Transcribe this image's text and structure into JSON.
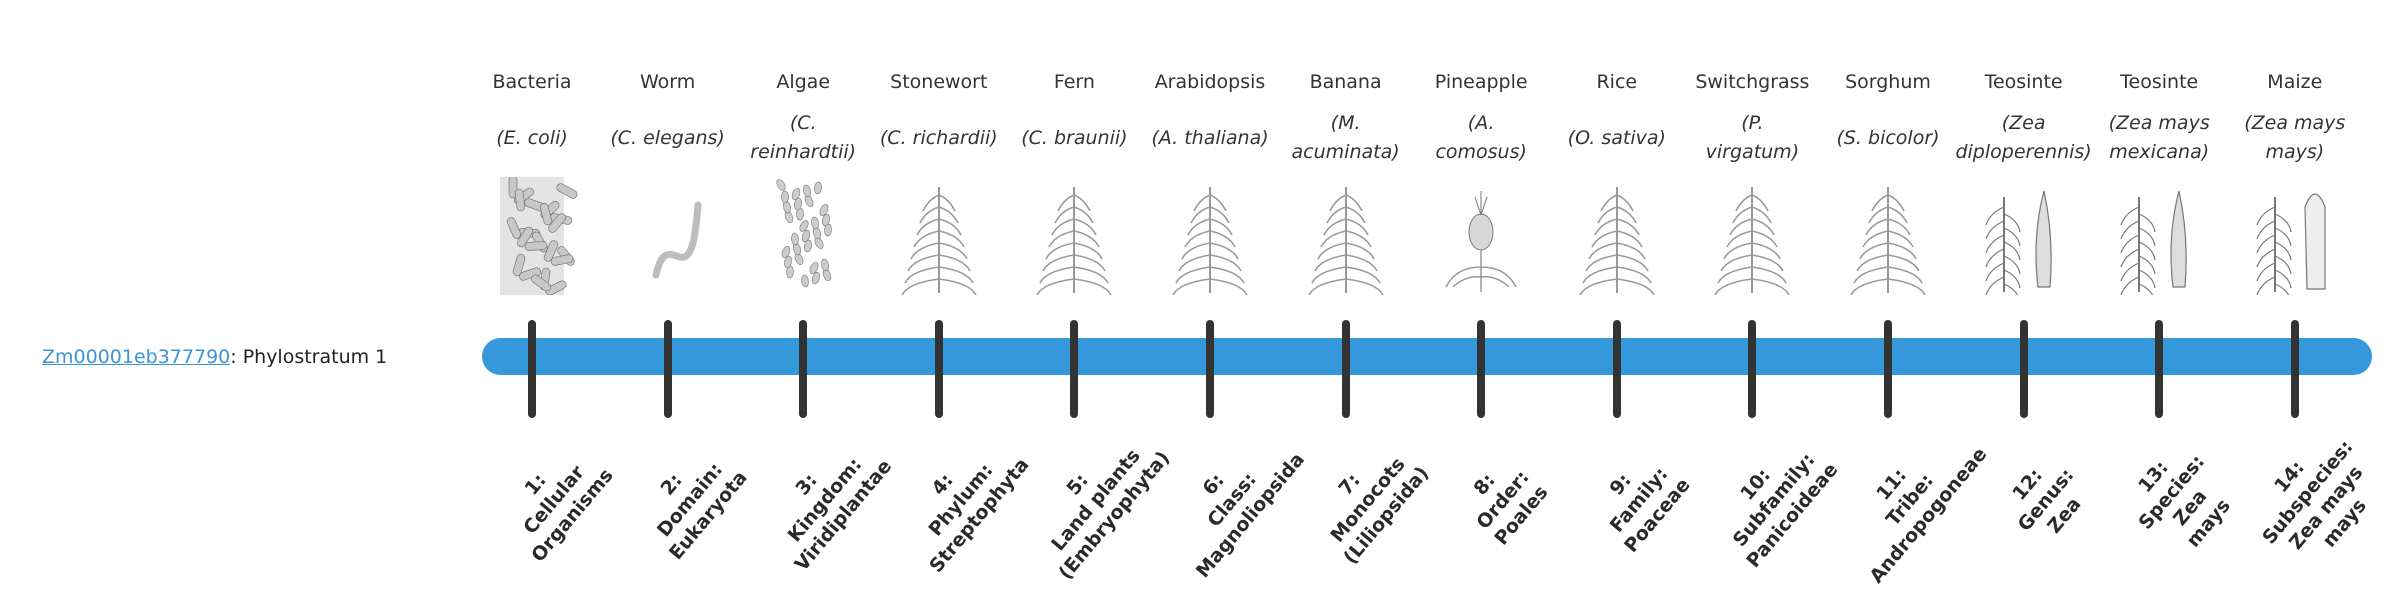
{
  "gene": {
    "id": "Zm00001eb377790",
    "suffix": ": Phylostratum 1"
  },
  "colors": {
    "bar": "#3498db",
    "tick": "#333333",
    "link": "#3a95d8"
  },
  "strata": [
    {
      "name": "Bacteria",
      "species": [
        "(E. coli)"
      ],
      "icon": "bacteria-icon",
      "label": [
        "1:",
        "Cellular",
        "Organisms"
      ]
    },
    {
      "name": "Worm",
      "species": [
        "(C. elegans)"
      ],
      "icon": "worm-icon",
      "label": [
        "2:",
        "Domain:",
        "Eukaryota"
      ]
    },
    {
      "name": "Algae",
      "species": [
        "(C.",
        "reinhardtii)"
      ],
      "icon": "algae-icon",
      "label": [
        "3:",
        "Kingdom:",
        "Viridiplantae"
      ]
    },
    {
      "name": "Stonewort",
      "species": [
        "(C. richardii)"
      ],
      "icon": "stonewort-icon",
      "label": [
        "4:",
        "Phylum:",
        "Streptophyta"
      ]
    },
    {
      "name": "Fern",
      "species": [
        "(C. braunii)"
      ],
      "icon": "fern-icon",
      "label": [
        "5:",
        "Land plants",
        "(Embryophyta)"
      ]
    },
    {
      "name": "Arabidopsis",
      "species": [
        "(A. thaliana)"
      ],
      "icon": "arabidopsis-icon",
      "label": [
        "6:",
        "Class:",
        "Magnoliopsida"
      ]
    },
    {
      "name": "Banana",
      "species": [
        "(M.",
        "acuminata)"
      ],
      "icon": "banana-icon",
      "label": [
        "7:",
        "Monocots",
        "(Liliopsida)"
      ]
    },
    {
      "name": "Pineapple",
      "species": [
        "(A.",
        "comosus)"
      ],
      "icon": "pineapple-icon",
      "label": [
        "8:",
        "Order:",
        "Poales"
      ]
    },
    {
      "name": "Rice",
      "species": [
        "(O. sativa)"
      ],
      "icon": "rice-icon",
      "label": [
        "9:",
        "Family:",
        "Poaceae"
      ]
    },
    {
      "name": "Switchgrass",
      "species": [
        "(P.",
        "virgatum)"
      ],
      "icon": "switchgrass-icon",
      "label": [
        "10:",
        "Subfamily:",
        "Panicoideae"
      ]
    },
    {
      "name": "Sorghum",
      "species": [
        "(S. bicolor)"
      ],
      "icon": "sorghum-icon",
      "label": [
        "11:",
        "Tribe:",
        "Andropogoneae"
      ]
    },
    {
      "name": "Teosinte",
      "species": [
        "(Zea",
        "diploperennis)"
      ],
      "icon": "teosinte-icon",
      "label": [
        "12:",
        "Genus:",
        "Zea"
      ]
    },
    {
      "name": "Teosinte",
      "species": [
        "(Zea mays",
        "mexicana)"
      ],
      "icon": "teosinte-icon",
      "label": [
        "13:",
        "Species:",
        "Zea",
        "mays"
      ]
    },
    {
      "name": "Maize",
      "species": [
        "(Zea mays",
        "mays)"
      ],
      "icon": "maize-icon",
      "label": [
        "14:",
        "Subspecies:",
        "Zea mays",
        "mays"
      ]
    }
  ]
}
